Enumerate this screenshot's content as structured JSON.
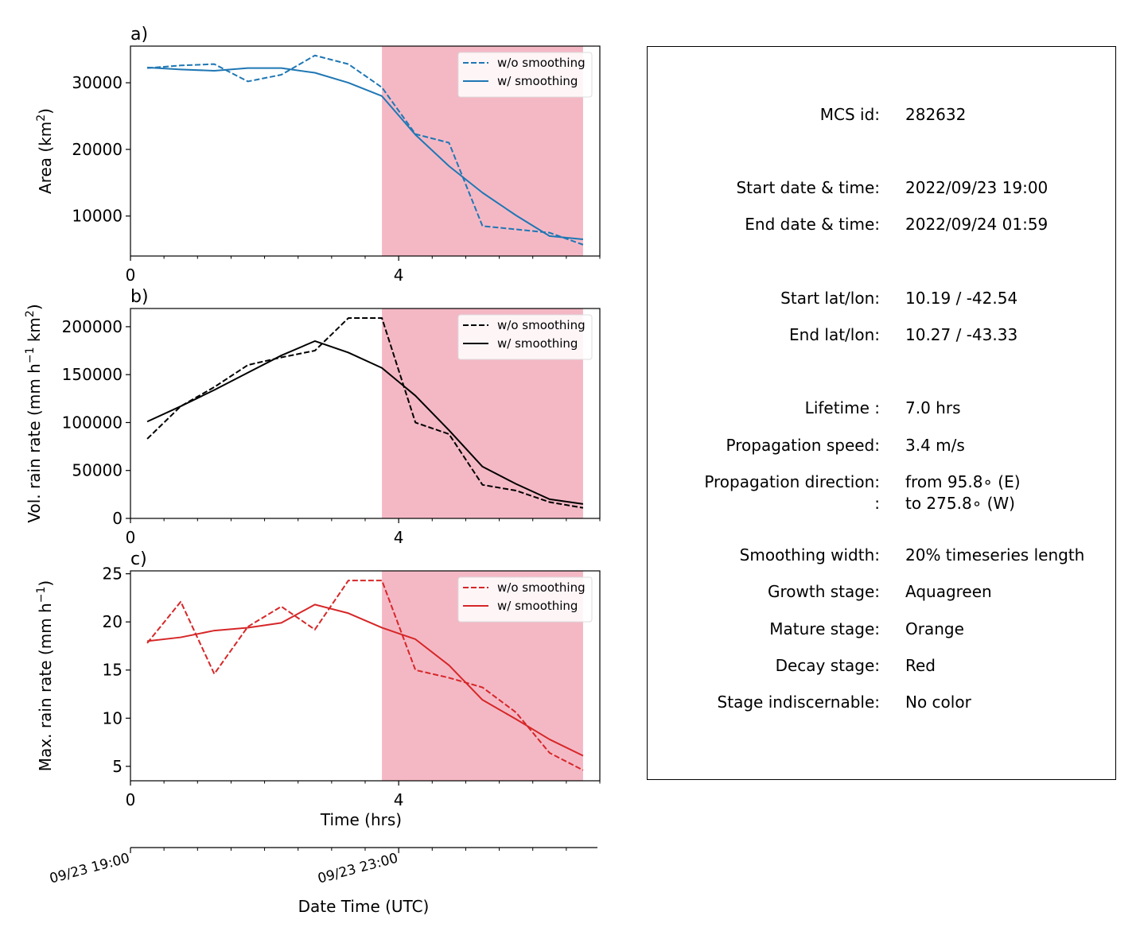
{
  "chart_data": [
    {
      "type": "line",
      "panel_label": "a)",
      "ylabel": "Area  (km$^2$)",
      "ylabel_parts": [
        "Area  (km",
        "2",
        ")"
      ],
      "x": [
        0.25,
        0.75,
        1.25,
        1.75,
        2.25,
        2.75,
        3.25,
        3.75,
        4.25,
        4.75,
        5.25,
        5.75,
        6.25,
        6.75
      ],
      "series": [
        {
          "name": "w/o smoothing",
          "style": "dashed",
          "color": "#1f77b4",
          "values": [
            32200,
            32600,
            32800,
            30200,
            31200,
            34100,
            32800,
            29300,
            22300,
            21000,
            8500,
            8000,
            7500,
            5700
          ]
        },
        {
          "name": "w/ smoothing",
          "style": "solid",
          "color": "#1f77b4",
          "values": [
            32300,
            32000,
            31800,
            32200,
            32200,
            31500,
            30000,
            28000,
            22200,
            17500,
            13500,
            10100,
            7000,
            6500
          ]
        }
      ],
      "xlim": [
        0,
        7
      ],
      "ylim": [
        4000,
        35500
      ],
      "yticks": [
        10000,
        20000,
        30000
      ],
      "xticks": [
        0,
        4
      ],
      "legend": "top-right",
      "shaded_span": {
        "from": 3.75,
        "to": 6.75,
        "color": "#f4b8c5",
        "stage": "Decay stage"
      }
    },
    {
      "type": "line",
      "panel_label": "b)",
      "ylabel": "Vol. rain rate (mm h$^{-1}$ km$^2$)",
      "ylabel_parts": [
        "Vol. rain rate (mm h",
        "−1",
        " km",
        "2",
        ")"
      ],
      "x": [
        0.25,
        0.75,
        1.25,
        1.75,
        2.25,
        2.75,
        3.25,
        3.75,
        4.25,
        4.75,
        5.25,
        5.75,
        6.25,
        6.75
      ],
      "series": [
        {
          "name": "w/o smoothing",
          "style": "dashed",
          "color": "#000000",
          "values": [
            83000,
            117000,
            137000,
            160000,
            168000,
            175000,
            209000,
            209000,
            100000,
            88000,
            35000,
            29000,
            17000,
            11000
          ]
        },
        {
          "name": "w/ smoothing",
          "style": "solid",
          "color": "#000000",
          "values": [
            101000,
            117000,
            134000,
            152000,
            170000,
            185000,
            173000,
            157000,
            128000,
            92000,
            54000,
            36000,
            20000,
            15000
          ]
        }
      ],
      "xlim": [
        0,
        7
      ],
      "ylim": [
        0,
        219000
      ],
      "yticks": [
        0,
        50000,
        100000,
        150000,
        200000
      ],
      "xticks": [
        0,
        4
      ],
      "legend": "top-right",
      "shaded_span": {
        "from": 3.75,
        "to": 6.75,
        "color": "#f4b8c5",
        "stage": "Decay stage"
      }
    },
    {
      "type": "line",
      "panel_label": "c)",
      "ylabel": "Max. rain rate  (mm h$^{-1}$)",
      "ylabel_parts": [
        "Max. rain rate  (mm h",
        "−1",
        ")"
      ],
      "xlabel": "Time (hrs)",
      "x": [
        0.25,
        0.75,
        1.25,
        1.75,
        2.25,
        2.75,
        3.25,
        3.75,
        4.25,
        4.75,
        5.25,
        5.75,
        6.25,
        6.75
      ],
      "series": [
        {
          "name": "w/o smoothing",
          "style": "dashed",
          "color": "#d62728",
          "values": [
            17.8,
            22.1,
            14.6,
            19.5,
            21.6,
            19.2,
            24.3,
            24.3,
            15.0,
            14.2,
            13.2,
            10.6,
            6.4,
            4.6
          ]
        },
        {
          "name": "w/ smoothing",
          "style": "solid",
          "color": "#d62728",
          "values": [
            18.0,
            18.4,
            19.1,
            19.4,
            19.9,
            21.8,
            20.9,
            19.4,
            18.2,
            15.5,
            11.9,
            9.9,
            7.8,
            6.1
          ]
        }
      ],
      "xlim": [
        0,
        7
      ],
      "ylim": [
        3.5,
        25.3
      ],
      "yticks": [
        5,
        10,
        15,
        20,
        25
      ],
      "xticks": [
        0,
        4
      ],
      "legend": "top-right",
      "shaded_span": {
        "from": 3.75,
        "to": 6.75,
        "color": "#f4b8c5",
        "stage": "Decay stage"
      }
    }
  ],
  "date_axis": {
    "label": "Date Time (UTC)",
    "ticks": [
      {
        "hours": 0,
        "label": "09/23 19:00"
      },
      {
        "hours": 4,
        "label": "09/23 23:00"
      }
    ],
    "minor_step_hours": 0.5
  },
  "info": {
    "rows": [
      {
        "label": "MCS id:",
        "value": "282632"
      },
      {
        "label": "Start date & time:",
        "value": "2022/09/23 19:00"
      },
      {
        "label": "End date & time:",
        "value": "2022/09/24 01:59"
      },
      {
        "label": "Start lat/lon:",
        "value": "10.19 / -42.54"
      },
      {
        "label": "End lat/lon:",
        "value": "10.27 / -43.33"
      },
      {
        "label": "Lifetime :",
        "value": "7.0 hrs"
      },
      {
        "label": "Propagation speed:",
        "value": "3.4 m/s"
      },
      {
        "label": "Propagation direction:",
        "value": "from  95.8∘ (E)"
      },
      {
        "label": ":",
        "value": "to   275.8∘ (W)"
      },
      {
        "label": "Smoothing width:",
        "value": "20% timeseries length"
      },
      {
        "label": "Growth stage:",
        "value": "Aquagreen"
      },
      {
        "label": "Mature stage:",
        "value": "Orange"
      },
      {
        "label": "Decay stage:",
        "value": "Red"
      },
      {
        "label": "Stage indiscernable:",
        "value": "No color"
      }
    ]
  }
}
